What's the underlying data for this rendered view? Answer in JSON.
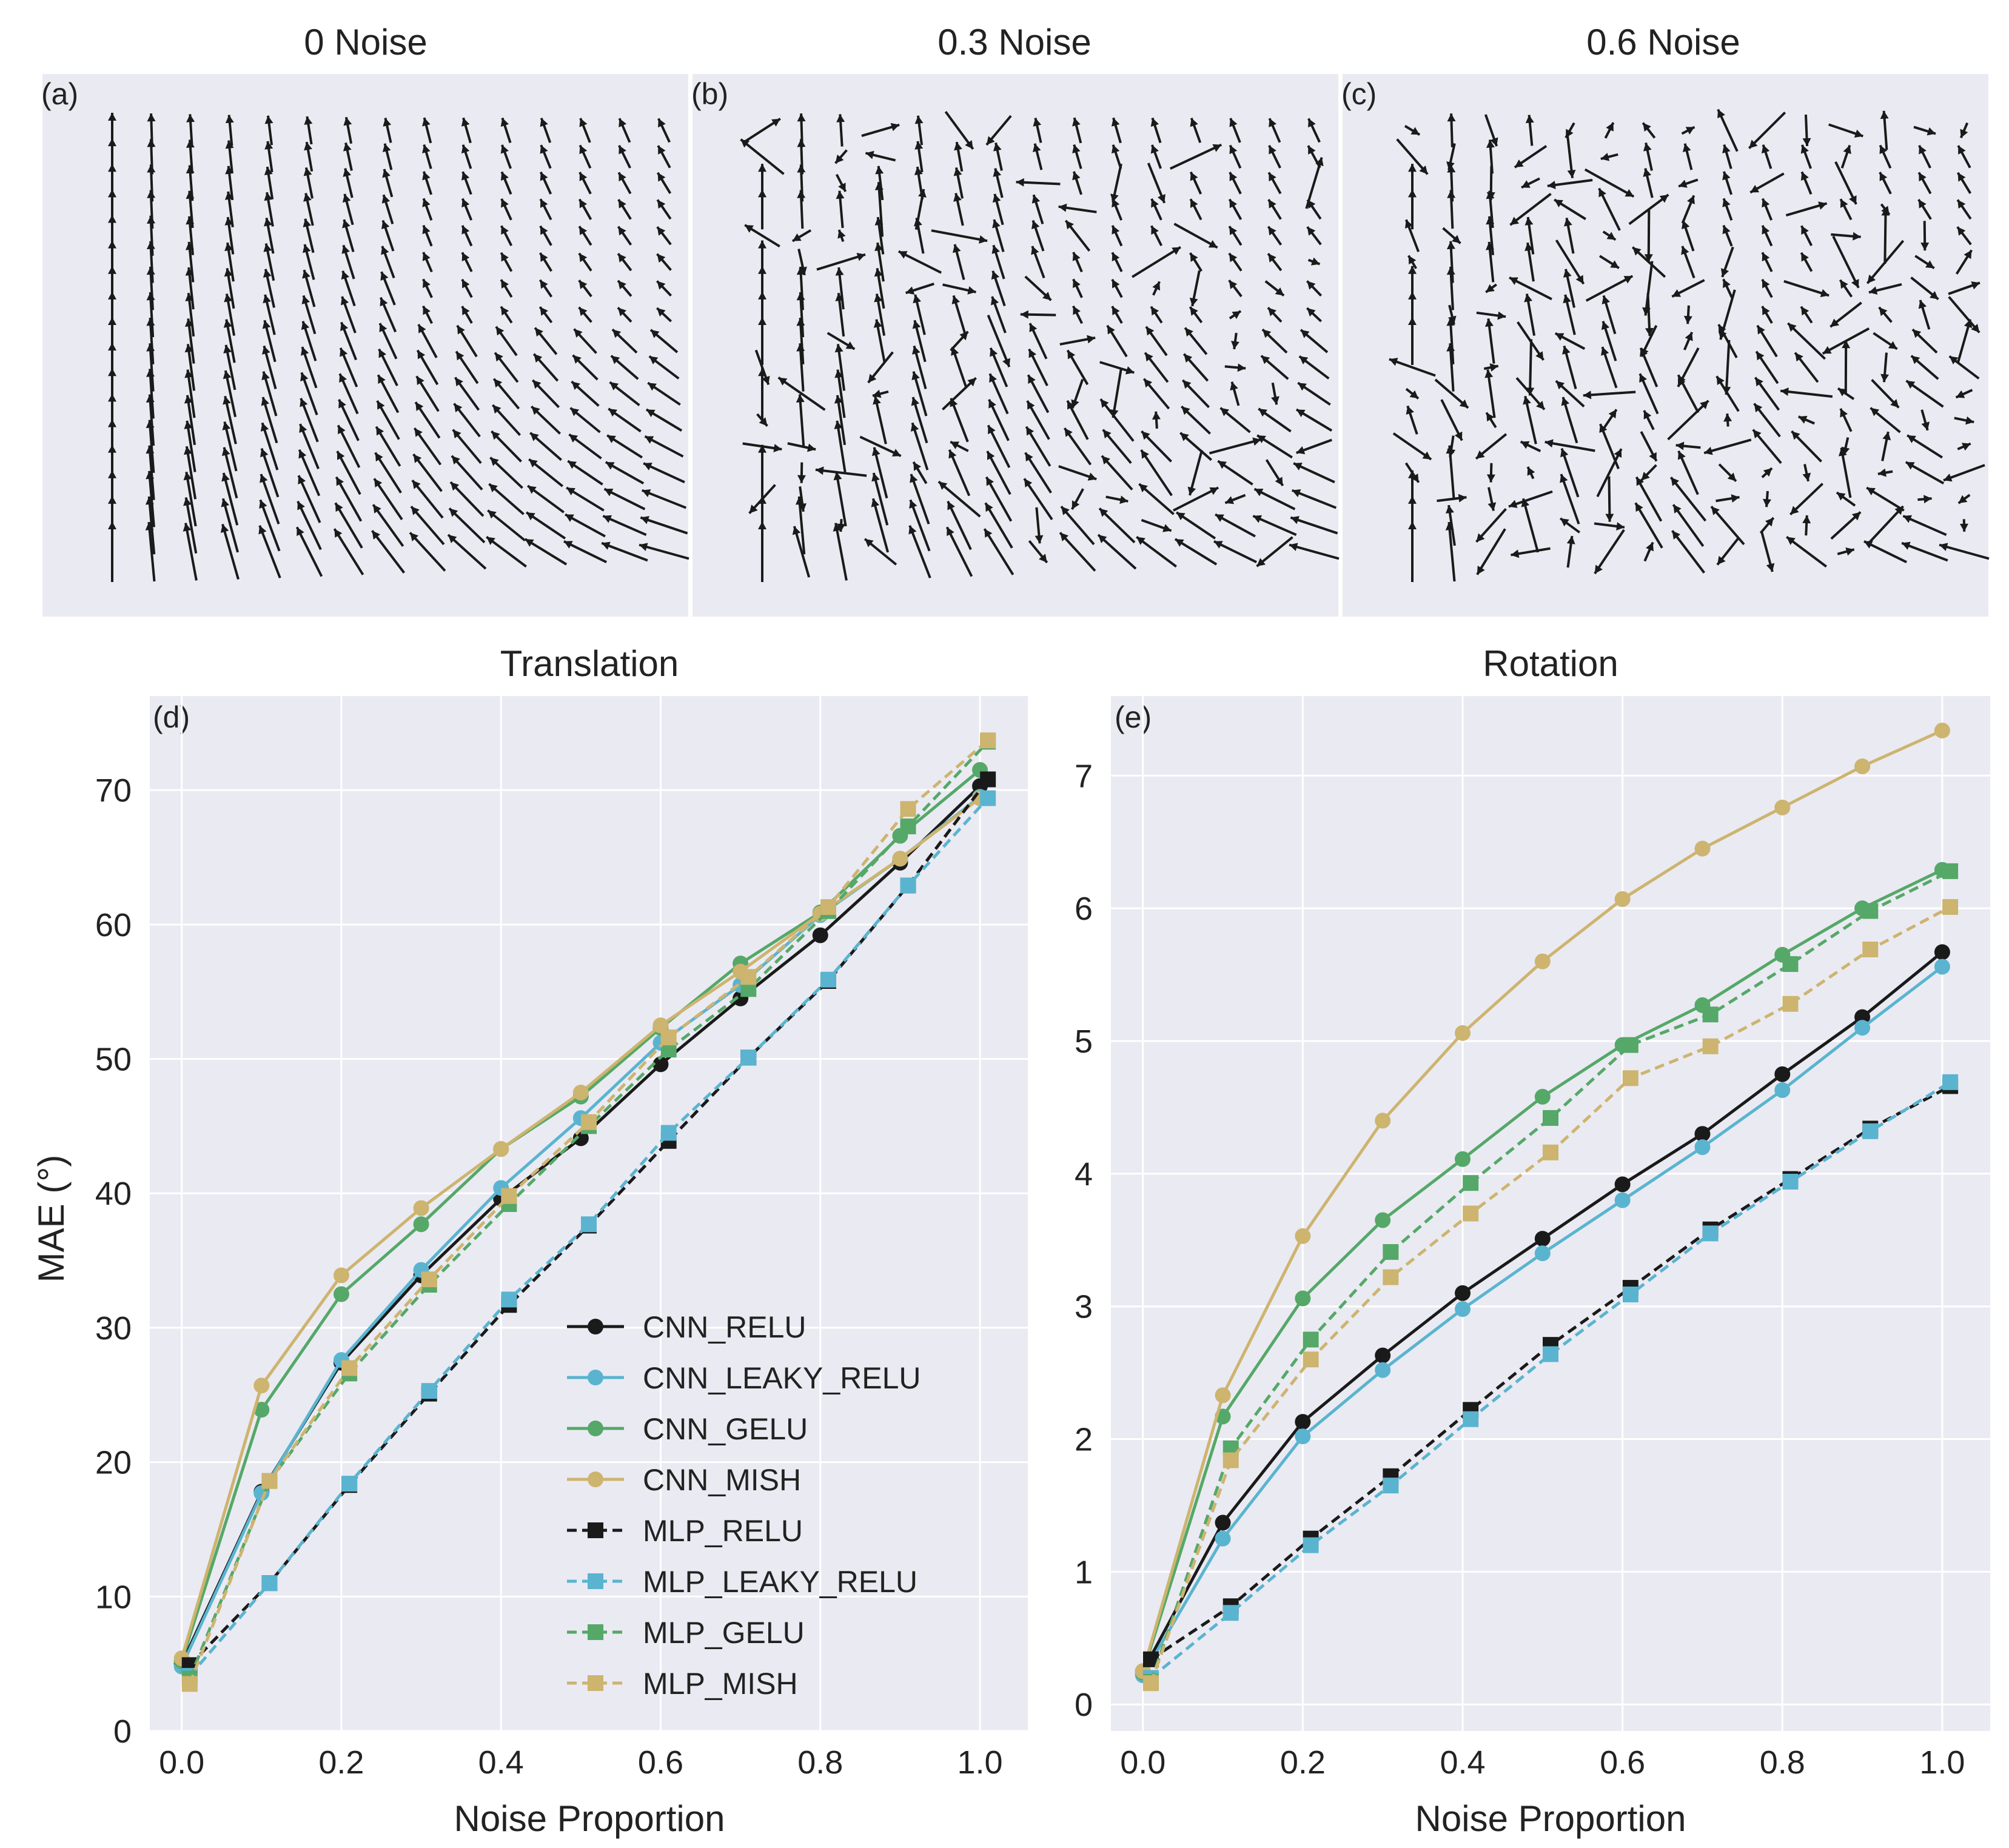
{
  "colors": {
    "panel_bg": "#eaeaf2",
    "grid": "#ffffff",
    "arrow": "#1a1a1a",
    "CNN_RELU": "#1a1a1a",
    "CNN_LEAKY_RELU": "#5ab4d0",
    "CNN_GELU": "#55a868",
    "CNN_MISH": "#cdb46f"
  },
  "quiver_panels": [
    {
      "title": "0 Noise",
      "label": "(a)",
      "noise": 0.0,
      "seed": 11
    },
    {
      "title": "0.3 Noise",
      "label": "(b)",
      "noise": 0.3,
      "seed": 29
    },
    {
      "title": "0.6 Noise",
      "label": "(c)",
      "noise": 0.6,
      "seed": 53
    }
  ],
  "chart_data": [
    {
      "type": "line",
      "id": "translation",
      "title": "Translation",
      "panel_label": "(d)",
      "xlabel": "Noise Proportion",
      "ylabel": "MAE (°)",
      "xlim": [
        -0.04,
        1.06
      ],
      "ylim": [
        0,
        77
      ],
      "xticks": [
        0.0,
        0.2,
        0.4,
        0.6,
        0.8,
        1.0
      ],
      "xtick_labels": [
        "0.0",
        "0.2",
        "0.4",
        "0.6",
        "0.8",
        "1.0"
      ],
      "yticks": [
        0,
        10,
        20,
        30,
        40,
        50,
        60,
        70
      ],
      "ytick_labels": [
        "0",
        "10",
        "20",
        "30",
        "40",
        "50",
        "60",
        "70"
      ],
      "legend": {
        "location": "lower-right"
      },
      "series": [
        {
          "name": "CNN_RELU",
          "model": "CNN",
          "x": [
            0.0,
            0.1,
            0.2,
            0.3,
            0.4,
            0.5,
            0.6,
            0.7,
            0.8,
            0.9,
            1.0
          ],
          "values": [
            5.0,
            17.8,
            27.4,
            33.9,
            39.6,
            44.1,
            49.6,
            54.5,
            59.2,
            64.6,
            70.3
          ]
        },
        {
          "name": "CNN_LEAKY_RELU",
          "model": "CNN",
          "x": [
            0.0,
            0.1,
            0.2,
            0.3,
            0.4,
            0.5,
            0.6,
            0.7,
            0.8,
            0.9,
            1.0
          ],
          "values": [
            4.8,
            17.7,
            27.6,
            34.3,
            40.4,
            45.6,
            51.2,
            55.5,
            60.7,
            64.9,
            69.5
          ]
        },
        {
          "name": "CNN_GELU",
          "model": "CNN",
          "x": [
            0.0,
            0.1,
            0.2,
            0.3,
            0.4,
            0.5,
            0.6,
            0.7,
            0.8,
            0.9,
            1.0
          ],
          "values": [
            5.2,
            23.9,
            32.5,
            37.7,
            43.3,
            47.2,
            52.3,
            57.1,
            60.9,
            66.6,
            71.5
          ]
        },
        {
          "name": "CNN_MISH",
          "model": "CNN",
          "x": [
            0.0,
            0.1,
            0.2,
            0.3,
            0.4,
            0.5,
            0.6,
            0.7,
            0.8,
            0.9,
            1.0
          ],
          "values": [
            5.4,
            25.7,
            33.9,
            38.9,
            43.3,
            47.5,
            52.5,
            56.5,
            60.8,
            64.9,
            69.4
          ]
        },
        {
          "name": "MLP_RELU",
          "model": "MLP",
          "x": [
            0.01,
            0.11,
            0.21,
            0.31,
            0.41,
            0.51,
            0.61,
            0.71,
            0.81,
            0.91,
            1.01
          ],
          "values": [
            4.9,
            11.0,
            18.3,
            25.1,
            31.7,
            37.6,
            43.9,
            50.1,
            55.8,
            62.9,
            70.8
          ]
        },
        {
          "name": "MLP_LEAKY_RELU",
          "model": "MLP",
          "x": [
            0.01,
            0.11,
            0.21,
            0.31,
            0.41,
            0.51,
            0.61,
            0.71,
            0.81,
            0.91,
            1.01
          ],
          "values": [
            4.1,
            11.0,
            18.4,
            25.3,
            32.1,
            37.7,
            44.5,
            50.1,
            55.9,
            62.9,
            69.4
          ]
        },
        {
          "name": "MLP_GELU",
          "model": "MLP",
          "x": [
            0.01,
            0.11,
            0.21,
            0.31,
            0.41,
            0.51,
            0.61,
            0.71,
            0.81,
            0.91,
            1.01
          ],
          "values": [
            3.9,
            18.6,
            26.6,
            33.2,
            39.2,
            45.0,
            50.7,
            55.2,
            61.0,
            67.3,
            73.6
          ]
        },
        {
          "name": "MLP_MISH",
          "model": "MLP",
          "x": [
            0.01,
            0.11,
            0.21,
            0.31,
            0.41,
            0.51,
            0.61,
            0.71,
            0.81,
            0.91,
            1.01
          ],
          "values": [
            3.5,
            18.6,
            27.0,
            33.6,
            39.8,
            45.3,
            51.6,
            56.1,
            61.3,
            68.6,
            73.7
          ]
        }
      ]
    },
    {
      "type": "line",
      "id": "rotation",
      "title": "Rotation",
      "panel_label": "(e)",
      "xlabel": "Noise Proportion",
      "ylabel": "",
      "xlim": [
        -0.04,
        1.06
      ],
      "ylim": [
        -0.2,
        7.6
      ],
      "xticks": [
        0.0,
        0.2,
        0.4,
        0.6,
        0.8,
        1.0
      ],
      "xtick_labels": [
        "0.0",
        "0.2",
        "0.4",
        "0.6",
        "0.8",
        "1.0"
      ],
      "yticks": [
        0,
        1,
        2,
        3,
        4,
        5,
        6,
        7
      ],
      "ytick_labels": [
        "0",
        "1",
        "2",
        "3",
        "4",
        "5",
        "6",
        "7"
      ],
      "series": [
        {
          "name": "CNN_RELU",
          "model": "CNN",
          "x": [
            0.0,
            0.1,
            0.2,
            0.3,
            0.4,
            0.5,
            0.6,
            0.7,
            0.8,
            0.9,
            1.0
          ],
          "values": [
            0.25,
            1.37,
            2.13,
            2.63,
            3.1,
            3.51,
            3.92,
            4.3,
            4.75,
            5.18,
            5.67
          ]
        },
        {
          "name": "CNN_LEAKY_RELU",
          "model": "CNN",
          "x": [
            0.0,
            0.1,
            0.2,
            0.3,
            0.4,
            0.5,
            0.6,
            0.7,
            0.8,
            0.9,
            1.0
          ],
          "values": [
            0.22,
            1.25,
            2.02,
            2.52,
            2.98,
            3.4,
            3.8,
            4.2,
            4.63,
            5.1,
            5.56
          ]
        },
        {
          "name": "CNN_GELU",
          "model": "CNN",
          "x": [
            0.0,
            0.1,
            0.2,
            0.3,
            0.4,
            0.5,
            0.6,
            0.7,
            0.8,
            0.9,
            1.0
          ],
          "values": [
            0.24,
            2.17,
            3.06,
            3.65,
            4.11,
            4.58,
            4.97,
            5.27,
            5.65,
            6.0,
            6.29
          ]
        },
        {
          "name": "CNN_MISH",
          "model": "CNN",
          "x": [
            0.0,
            0.1,
            0.2,
            0.3,
            0.4,
            0.5,
            0.6,
            0.7,
            0.8,
            0.9,
            1.0
          ],
          "values": [
            0.25,
            2.33,
            3.53,
            4.4,
            5.06,
            5.6,
            6.07,
            6.45,
            6.76,
            7.07,
            7.34
          ]
        },
        {
          "name": "MLP_RELU",
          "model": "MLP",
          "x": [
            0.01,
            0.11,
            0.21,
            0.31,
            0.41,
            0.51,
            0.61,
            0.71,
            0.81,
            0.91,
            1.01
          ],
          "values": [
            0.34,
            0.74,
            1.25,
            1.72,
            2.22,
            2.71,
            3.14,
            3.58,
            3.96,
            4.34,
            4.66
          ]
        },
        {
          "name": "MLP_LEAKY_RELU",
          "model": "MLP",
          "x": [
            0.01,
            0.11,
            0.21,
            0.31,
            0.41,
            0.51,
            0.61,
            0.71,
            0.81,
            0.91,
            1.01
          ],
          "values": [
            0.2,
            0.69,
            1.2,
            1.65,
            2.15,
            2.64,
            3.09,
            3.55,
            3.94,
            4.32,
            4.69
          ]
        },
        {
          "name": "MLP_GELU",
          "model": "MLP",
          "x": [
            0.01,
            0.11,
            0.21,
            0.31,
            0.41,
            0.51,
            0.61,
            0.71,
            0.81,
            0.91,
            1.01
          ],
          "values": [
            0.17,
            1.93,
            2.75,
            3.41,
            3.93,
            4.42,
            4.97,
            5.2,
            5.58,
            5.98,
            6.28
          ]
        },
        {
          "name": "MLP_MISH",
          "model": "MLP",
          "x": [
            0.01,
            0.11,
            0.21,
            0.31,
            0.41,
            0.51,
            0.61,
            0.71,
            0.81,
            0.91,
            1.01
          ],
          "values": [
            0.16,
            1.84,
            2.6,
            3.22,
            3.7,
            4.16,
            4.72,
            4.96,
            5.28,
            5.69,
            6.01
          ]
        }
      ]
    }
  ]
}
